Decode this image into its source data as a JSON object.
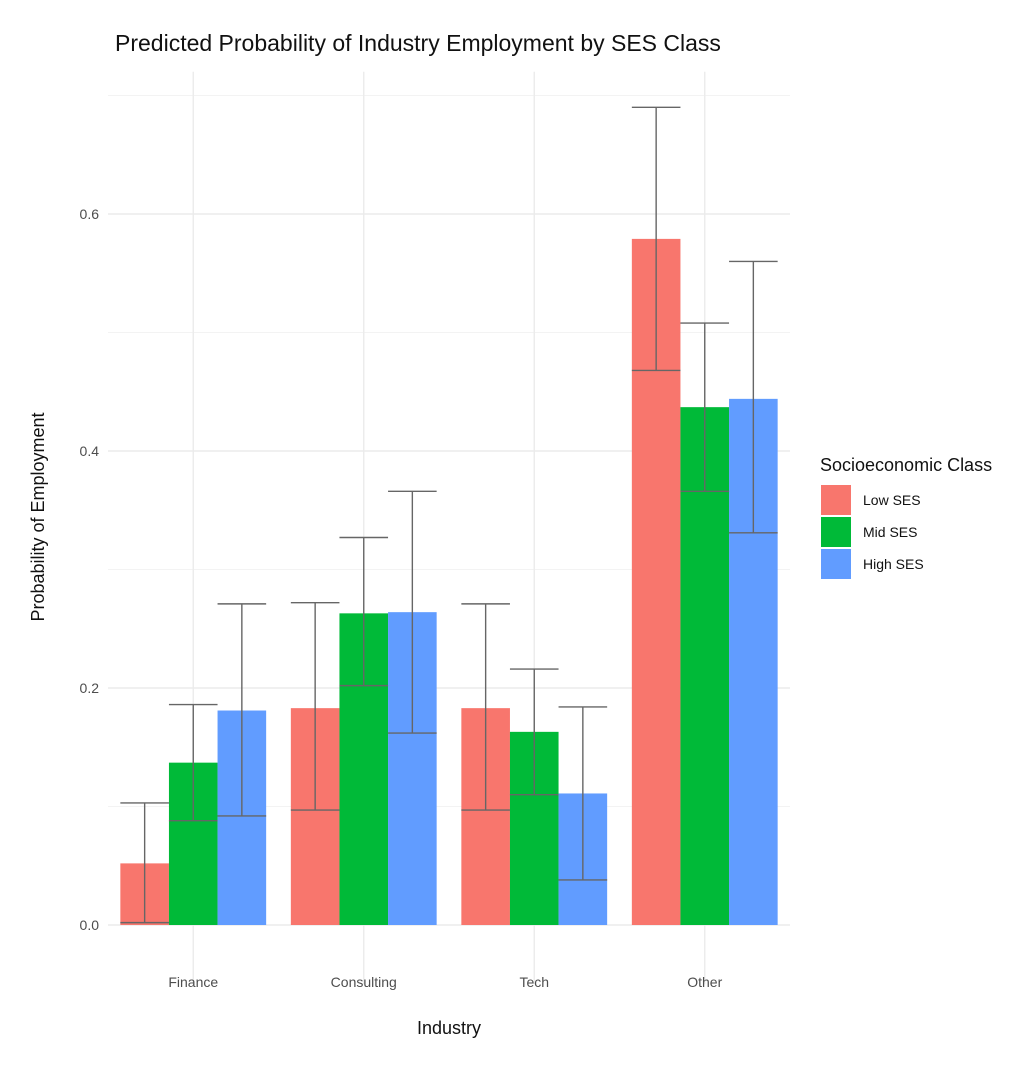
{
  "chart_data": {
    "type": "bar",
    "title": "Predicted Probability of Industry Employment by SES Class",
    "xlabel": "Industry",
    "ylabel": "Probability of Employment",
    "categories": [
      "Finance",
      "Consulting",
      "Tech",
      "Other"
    ],
    "ylim": [
      -0.05,
      0.72
    ],
    "yticks": [
      0.0,
      0.2,
      0.4,
      0.6
    ],
    "ytick_labels": [
      "0.0",
      "0.2",
      "0.4",
      "0.6"
    ],
    "grid": true,
    "legend": {
      "title": "Socioeconomic Class",
      "position": "right"
    },
    "series": [
      {
        "name": "Low SES",
        "color": "#F8766D",
        "values": [
          0.052,
          0.183,
          0.183,
          0.579
        ],
        "error_low": [
          0.002,
          0.097,
          0.097,
          0.468
        ],
        "error_high": [
          0.103,
          0.272,
          0.271,
          0.69
        ]
      },
      {
        "name": "Mid SES",
        "color": "#00BA38",
        "values": [
          0.137,
          0.263,
          0.163,
          0.437
        ],
        "error_low": [
          0.088,
          0.202,
          0.11,
          0.366
        ],
        "error_high": [
          0.186,
          0.327,
          0.216,
          0.508
        ]
      },
      {
        "name": "High SES",
        "color": "#619CFF",
        "values": [
          0.181,
          0.264,
          0.111,
          0.444
        ],
        "error_low": [
          0.092,
          0.162,
          0.038,
          0.331
        ],
        "error_high": [
          0.271,
          0.366,
          0.184,
          0.56
        ]
      }
    ],
    "errorbar_color": "#666666"
  }
}
